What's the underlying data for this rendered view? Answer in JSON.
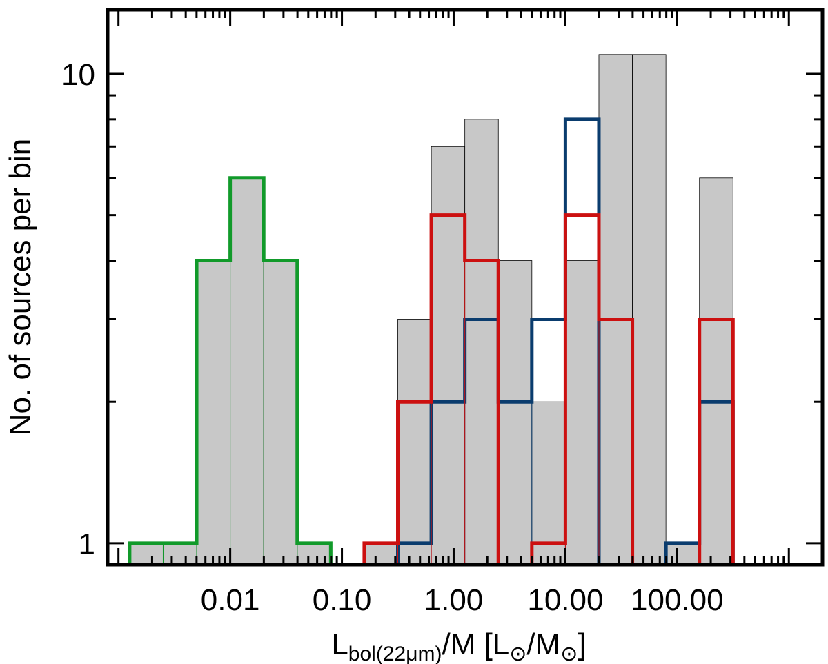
{
  "chart_data": {
    "type": "bar",
    "x_scale": "log",
    "y_scale": "log",
    "xlabel": {
      "main": "L",
      "sub": "bol(22μm)",
      "rest": "/M [L",
      "sym1": "⊙",
      "mid": "/M",
      "sym2": "⊙",
      "end": "]"
    },
    "ylabel": "No. of sources per bin",
    "x_ticks": [
      {
        "value": 0.01,
        "label": "0.01"
      },
      {
        "value": 0.1,
        "label": "0.10"
      },
      {
        "value": 1,
        "label": "1.00"
      },
      {
        "value": 10,
        "label": "10.00"
      },
      {
        "value": 100,
        "label": "100.00"
      }
    ],
    "y_ticks": [
      {
        "value": 1,
        "label": "1"
      },
      {
        "value": 10,
        "label": "10"
      }
    ],
    "xlim": [
      0.0008,
      2000
    ],
    "ylim": [
      0.9,
      13.7
    ],
    "bins_log_x": {
      "start": -2.9,
      "width": 0.3
    },
    "colors": {
      "total": "#c8c8c8",
      "green": "#119a2a",
      "blue": "#0a3c6e",
      "red": "#cc1010"
    },
    "series": [
      {
        "key": "total",
        "values": [
          1,
          1,
          4,
          6,
          4,
          1,
          0,
          1,
          3,
          7,
          8,
          4,
          2,
          4,
          11,
          11,
          1,
          6
        ]
      },
      {
        "key": "green",
        "values": [
          1,
          1,
          4,
          6,
          4,
          1,
          0,
          0,
          0,
          0,
          0,
          0,
          0,
          0,
          0,
          0,
          0,
          0
        ]
      },
      {
        "key": "red",
        "values": [
          0,
          0,
          0,
          0,
          0,
          0,
          0,
          1,
          2,
          5,
          4,
          0,
          1,
          5,
          3,
          0,
          0,
          3
        ]
      },
      {
        "key": "blue",
        "values": [
          0,
          0,
          0,
          0,
          0,
          0,
          0,
          0,
          1,
          2,
          3,
          2,
          3,
          8,
          0,
          0,
          1,
          2
        ]
      }
    ]
  }
}
